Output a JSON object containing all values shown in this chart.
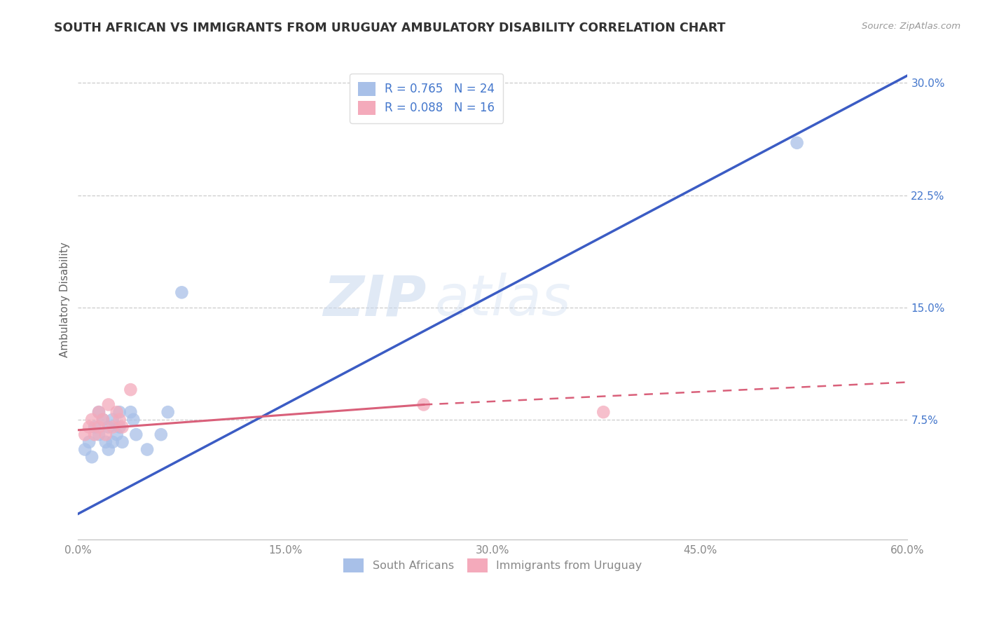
{
  "title": "SOUTH AFRICAN VS IMMIGRANTS FROM URUGUAY AMBULATORY DISABILITY CORRELATION CHART",
  "source": "Source: ZipAtlas.com",
  "ylabel": "Ambulatory Disability",
  "xlim": [
    0.0,
    0.6
  ],
  "ylim": [
    -0.005,
    0.315
  ],
  "yticks": [
    0.075,
    0.15,
    0.225,
    0.3
  ],
  "ytick_labels": [
    "7.5%",
    "15.0%",
    "22.5%",
    "30.0%"
  ],
  "xticks": [
    0.0,
    0.15,
    0.3,
    0.45,
    0.6
  ],
  "xtick_labels": [
    "0.0%",
    "15.0%",
    "30.0%",
    "45.0%",
    "60.0%"
  ],
  "blue_R": 0.765,
  "blue_N": 24,
  "pink_R": 0.088,
  "pink_N": 16,
  "blue_color": "#A8C0E8",
  "pink_color": "#F4AABB",
  "trendline_blue": "#3B5CC4",
  "trendline_pink": "#D9607A",
  "watermark_zip": "ZIP",
  "watermark_atlas": "atlas",
  "blue_scatter_x": [
    0.005,
    0.008,
    0.01,
    0.012,
    0.015,
    0.015,
    0.018,
    0.02,
    0.022,
    0.022,
    0.025,
    0.025,
    0.028,
    0.03,
    0.03,
    0.032,
    0.038,
    0.04,
    0.042,
    0.05,
    0.06,
    0.065,
    0.075,
    0.52
  ],
  "blue_scatter_y": [
    0.055,
    0.06,
    0.05,
    0.07,
    0.065,
    0.08,
    0.075,
    0.06,
    0.055,
    0.07,
    0.06,
    0.075,
    0.065,
    0.08,
    0.07,
    0.06,
    0.08,
    0.075,
    0.065,
    0.055,
    0.065,
    0.08,
    0.16,
    0.26
  ],
  "pink_scatter_x": [
    0.005,
    0.008,
    0.01,
    0.012,
    0.015,
    0.015,
    0.018,
    0.02,
    0.022,
    0.025,
    0.028,
    0.03,
    0.032,
    0.038,
    0.25,
    0.38
  ],
  "pink_scatter_y": [
    0.065,
    0.07,
    0.075,
    0.065,
    0.08,
    0.07,
    0.075,
    0.065,
    0.085,
    0.07,
    0.08,
    0.075,
    0.07,
    0.095,
    0.085,
    0.08
  ],
  "blue_trend_x0": 0.0,
  "blue_trend_y0": 0.012,
  "blue_trend_x1": 0.6,
  "blue_trend_y1": 0.305,
  "pink_trend_x0": 0.0,
  "pink_trend_y0": 0.068,
  "pink_trend_x1_solid": 0.25,
  "pink_trend_y1_solid": 0.085,
  "pink_trend_x1_dash": 0.6,
  "pink_trend_y1_dash": 0.1,
  "legend_label_blue": "South Africans",
  "legend_label_pink": "Immigrants from Uruguay",
  "background_color": "#FFFFFF",
  "grid_color": "#CCCCCC",
  "title_color": "#333333",
  "axis_label_color": "#666666",
  "tick_color": "#888888",
  "right_tick_color": "#4477CC"
}
